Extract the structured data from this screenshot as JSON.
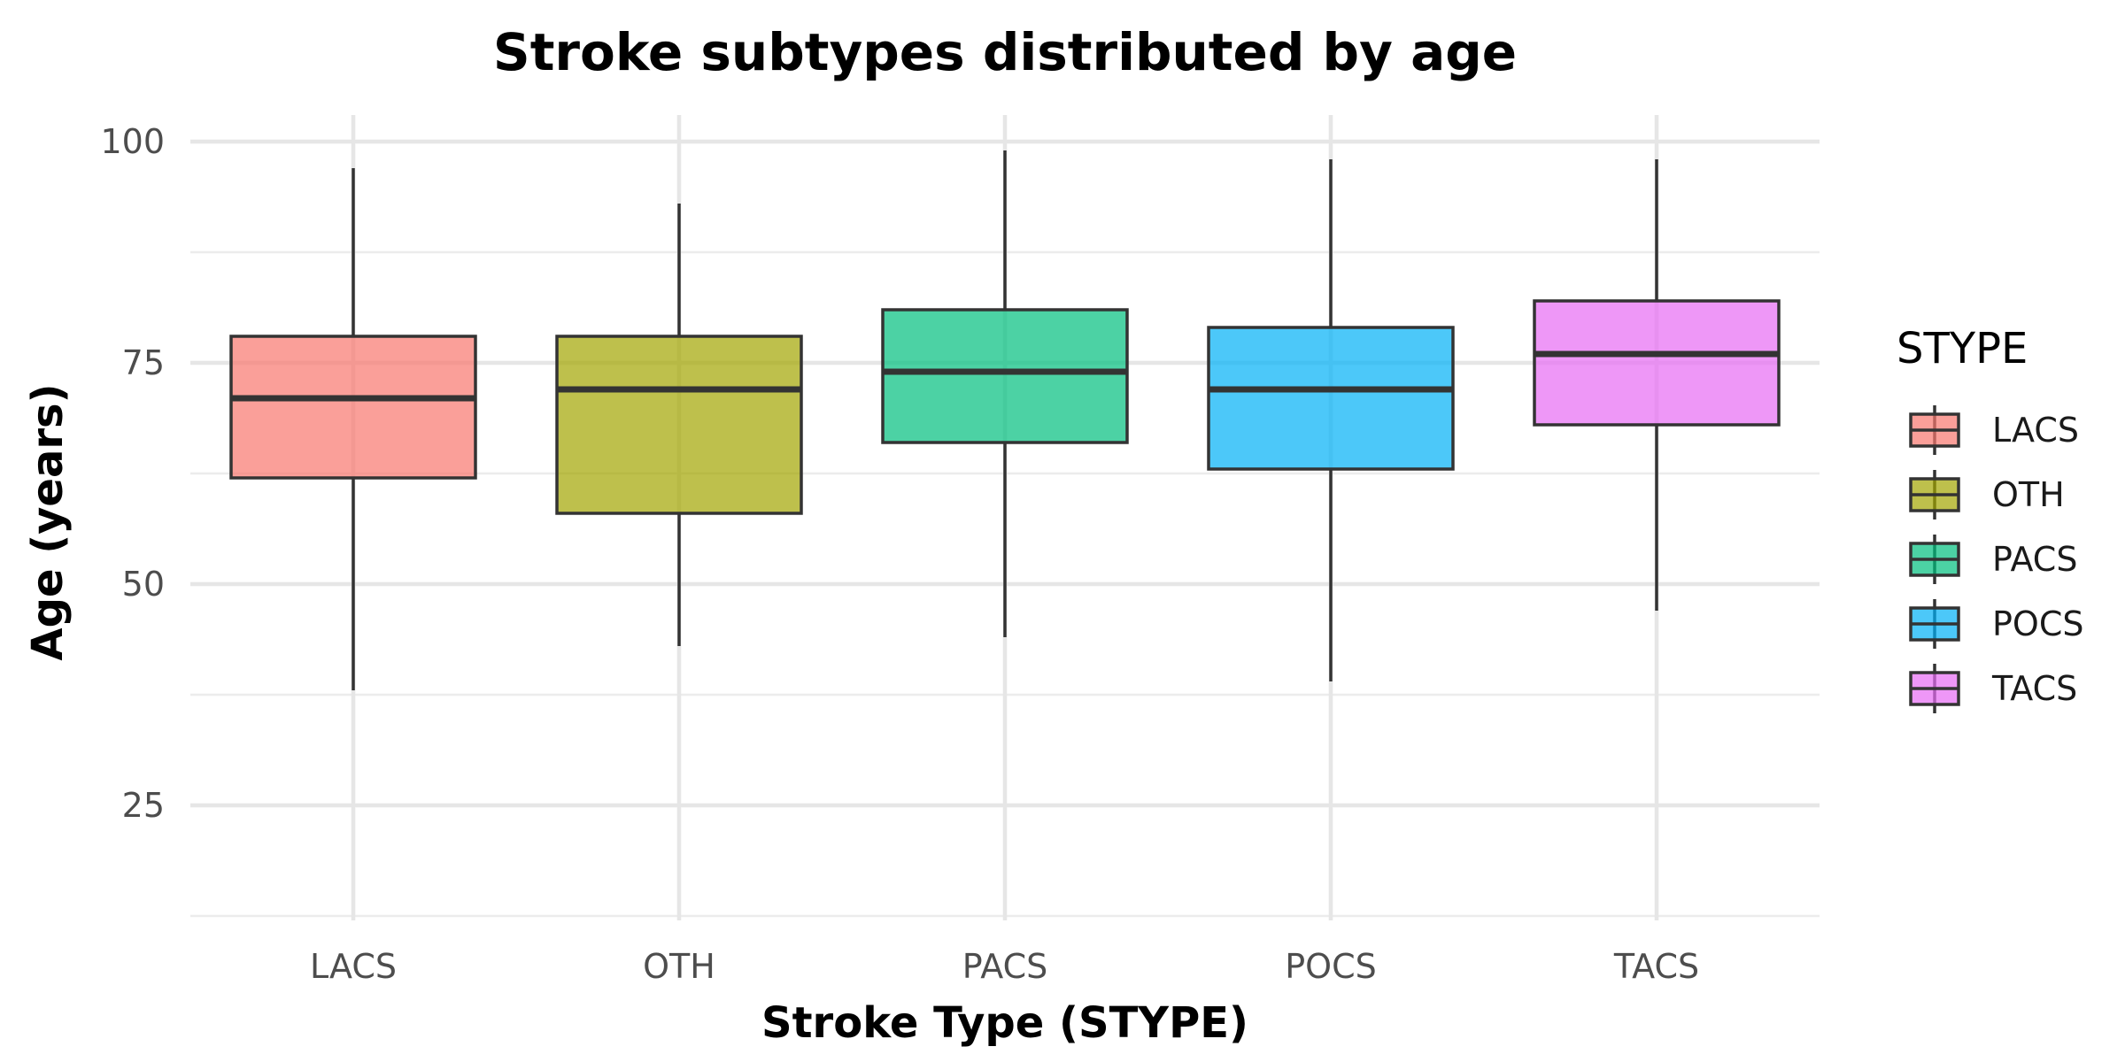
{
  "chart_data": {
    "type": "box",
    "title": "Stroke subtypes distributed by age",
    "xlabel": "Stroke Type (STYPE)",
    "ylabel": "Age (years)",
    "ylim": [
      12,
      103
    ],
    "yticks": [
      25,
      50,
      75,
      100
    ],
    "y_minor_ticks": [
      12.5,
      37.5,
      62.5,
      87.5
    ],
    "grid": true,
    "categories": [
      "LACS",
      "OTH",
      "PACS",
      "POCS",
      "TACS"
    ],
    "series": [
      {
        "name": "LACS",
        "min": 38,
        "q1": 62,
        "median": 71,
        "q3": 78,
        "max": 97,
        "color": "#F8766D"
      },
      {
        "name": "OTH",
        "min": 43,
        "q1": 58,
        "median": 72,
        "q3": 78,
        "max": 93,
        "color": "#A3A500"
      },
      {
        "name": "PACS",
        "min": 44,
        "q1": 66,
        "median": 74,
        "q3": 81,
        "max": 99,
        "color": "#00BF7D"
      },
      {
        "name": "POCS",
        "min": 39,
        "q1": 63,
        "median": 72,
        "q3": 79,
        "max": 98,
        "color": "#00B0F6"
      },
      {
        "name": "TACS",
        "min": 47,
        "q1": 68,
        "median": 76,
        "q3": 82,
        "max": 98,
        "color": "#E76BF3"
      }
    ],
    "legend": {
      "title": "STYPE",
      "position": "right",
      "entries": [
        "LACS",
        "OTH",
        "PACS",
        "POCS",
        "TACS"
      ]
    }
  }
}
